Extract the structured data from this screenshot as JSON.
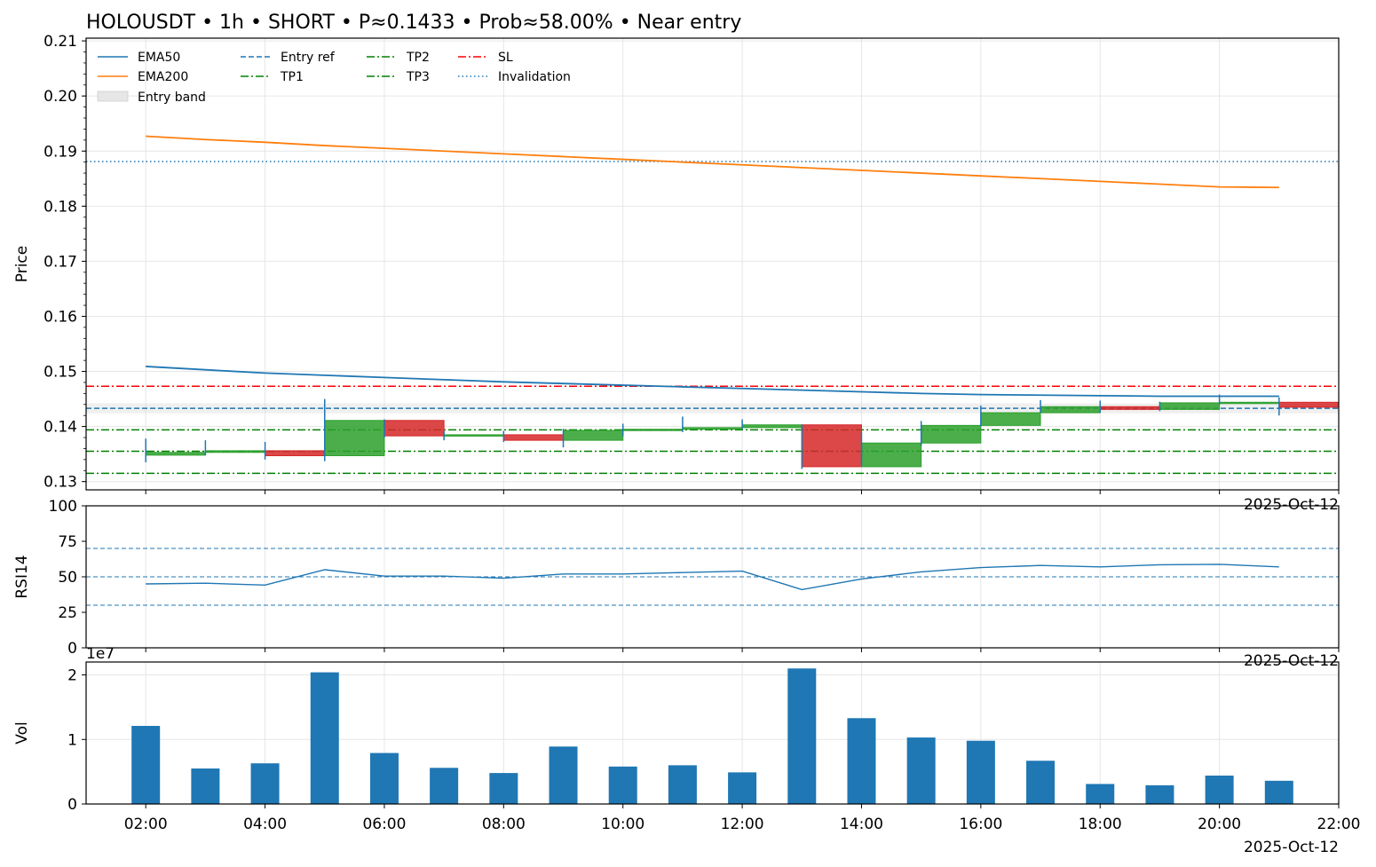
{
  "chart_data": [
    {
      "type": "candlestick",
      "panel": "price",
      "title": "HOLOUSDT • 1h • SHORT • P≈0.1433 • Prob≈58.00% • Near entry",
      "ylabel": "Price",
      "ylim": [
        0.1285,
        0.2105
      ],
      "yticks": [
        "0.13",
        "0.14",
        "0.15",
        "0.16",
        "0.17",
        "0.18",
        "0.19",
        "0.20",
        "0.21"
      ],
      "date_label": "2025-Oct-12",
      "grid": true,
      "legend_placement": "top-left",
      "legend": [
        {
          "name": "EMA50",
          "style": "solid",
          "color": "#1f77b4"
        },
        {
          "name": "EMA200",
          "style": "solid",
          "color": "#ff7f0e"
        },
        {
          "name": "Entry band",
          "style": "band",
          "color": "#d9d9d9"
        },
        {
          "name": "Entry ref",
          "style": "dashed",
          "color": "#1f77b4"
        },
        {
          "name": "TP1",
          "style": "dashdot",
          "color": "#008000"
        },
        {
          "name": "TP2",
          "style": "dashdot",
          "color": "#008000"
        },
        {
          "name": "TP3",
          "style": "dashdot",
          "color": "#008000"
        },
        {
          "name": "SL",
          "style": "dashdot",
          "color": "#ff0000"
        },
        {
          "name": "Invalidation",
          "style": "dotted",
          "color": "#1f77b4"
        }
      ],
      "hours": [
        2,
        3,
        4,
        5,
        6,
        7,
        8,
        9,
        10,
        11,
        12,
        13,
        14,
        15,
        16,
        17,
        18,
        19,
        20,
        21
      ],
      "candles": [
        {
          "o": 0.1348,
          "h": 0.1378,
          "l": 0.1335,
          "c": 0.1353
        },
        {
          "o": 0.1353,
          "h": 0.1375,
          "l": 0.1348,
          "c": 0.1356
        },
        {
          "o": 0.1356,
          "h": 0.1372,
          "l": 0.134,
          "c": 0.1347
        },
        {
          "o": 0.1347,
          "h": 0.145,
          "l": 0.1337,
          "c": 0.1411
        },
        {
          "o": 0.1411,
          "h": 0.1413,
          "l": 0.138,
          "c": 0.1383
        },
        {
          "o": 0.1383,
          "h": 0.1392,
          "l": 0.1375,
          "c": 0.1385
        },
        {
          "o": 0.1385,
          "h": 0.1392,
          "l": 0.1372,
          "c": 0.1375
        },
        {
          "o": 0.1375,
          "h": 0.1396,
          "l": 0.1362,
          "c": 0.1393
        },
        {
          "o": 0.1393,
          "h": 0.1405,
          "l": 0.1382,
          "c": 0.1395
        },
        {
          "o": 0.1395,
          "h": 0.1418,
          "l": 0.139,
          "c": 0.1398
        },
        {
          "o": 0.1398,
          "h": 0.1413,
          "l": 0.1395,
          "c": 0.1403
        },
        {
          "o": 0.1403,
          "h": 0.1403,
          "l": 0.1323,
          "c": 0.1327
        },
        {
          "o": 0.1327,
          "h": 0.139,
          "l": 0.1327,
          "c": 0.137
        },
        {
          "o": 0.137,
          "h": 0.141,
          "l": 0.1365,
          "c": 0.1402
        },
        {
          "o": 0.1402,
          "h": 0.1438,
          "l": 0.14,
          "c": 0.1425
        },
        {
          "o": 0.1425,
          "h": 0.1448,
          "l": 0.1425,
          "c": 0.1436
        },
        {
          "o": 0.1436,
          "h": 0.1447,
          "l": 0.1425,
          "c": 0.1431
        },
        {
          "o": 0.1431,
          "h": 0.1445,
          "l": 0.1428,
          "c": 0.1443
        },
        {
          "o": 0.1443,
          "h": 0.1458,
          "l": 0.144,
          "c": 0.1444
        },
        {
          "o": 0.1444,
          "h": 0.1453,
          "l": 0.142,
          "c": 0.1435
        }
      ],
      "ema50": [
        0.1509,
        0.1503,
        0.1497,
        0.1493,
        0.1489,
        0.1485,
        0.1481,
        0.1478,
        0.1475,
        0.1472,
        0.1469,
        0.1466,
        0.1463,
        0.146,
        0.1458,
        0.1457,
        0.1456,
        0.1455,
        0.1455,
        0.1455
      ],
      "ema200": [
        0.1927,
        0.1921,
        0.1916,
        0.191,
        0.1905,
        0.19,
        0.1895,
        0.189,
        0.1885,
        0.188,
        0.1875,
        0.187,
        0.1865,
        0.186,
        0.1855,
        0.185,
        0.1845,
        0.184,
        0.1835,
        0.1834
      ],
      "levels": {
        "entry_ref": 0.1433,
        "entry_band": [
          0.1424,
          0.1442
        ],
        "sl": 0.1473,
        "tp1": 0.1394,
        "tp2": 0.1355,
        "tp3": 0.1315,
        "invalidation": 0.1881
      }
    },
    {
      "type": "line",
      "panel": "rsi",
      "ylabel": "RSI14",
      "ylim": [
        0,
        100
      ],
      "yticks": [
        "0",
        "25",
        "50",
        "75",
        "100"
      ],
      "date_label": "2025-Oct-12",
      "hours": [
        2,
        3,
        4,
        5,
        6,
        7,
        8,
        9,
        10,
        11,
        12,
        13,
        14,
        15,
        16,
        17,
        18,
        19,
        20,
        21
      ],
      "values": [
        45,
        45.5,
        44.2,
        55,
        50.5,
        50.5,
        49,
        52,
        52,
        53,
        54,
        41,
        48.5,
        53.5,
        56.5,
        58,
        57,
        58.5,
        58.8,
        57
      ],
      "ref_lines": [
        70,
        50,
        30
      ]
    },
    {
      "type": "bar",
      "panel": "volume",
      "ylabel": "Vol",
      "ylim": [
        0,
        2.2
      ],
      "yticks": [
        "0",
        "1",
        "2"
      ],
      "scale_label": "1e7",
      "date_label": "2025-Oct-12",
      "x_ticks": [
        "02:00",
        "04:00",
        "06:00",
        "08:00",
        "10:00",
        "12:00",
        "14:00",
        "16:00",
        "18:00",
        "20:00",
        "22:00"
      ],
      "hours": [
        2,
        3,
        4,
        5,
        6,
        7,
        8,
        9,
        10,
        11,
        12,
        13,
        14,
        15,
        16,
        17,
        18,
        19,
        20,
        21
      ],
      "values": [
        1.21,
        0.55,
        0.63,
        2.04,
        0.79,
        0.56,
        0.48,
        0.89,
        0.58,
        0.6,
        0.49,
        2.1,
        1.33,
        1.03,
        0.98,
        0.67,
        0.31,
        0.29,
        0.44,
        0.36
      ]
    }
  ],
  "colors": {
    "up": "#2ca02c",
    "down": "#d62728",
    "ema50": "#1f77b4",
    "ema200": "#ff7f0e",
    "wick": "#1f77b4",
    "volume": "#1f77b4",
    "grid": "#e6e6e6"
  }
}
